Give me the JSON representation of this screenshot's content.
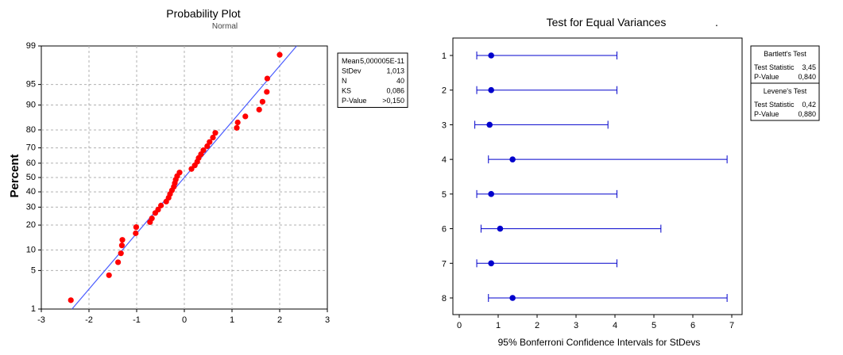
{
  "chart_data": [
    {
      "type": "scatter",
      "title": "Probability Plot",
      "subtitle": "Normal",
      "xlabel": "",
      "ylabel": "Percent",
      "xlim": [
        -3,
        3
      ],
      "xticks": [
        "-3",
        "-2",
        "-1",
        "0",
        "1",
        "2",
        "3"
      ],
      "yticks": [
        "1",
        "5",
        "10",
        "20",
        "30",
        "40",
        "50",
        "60",
        "70",
        "80",
        "90",
        "95",
        "99"
      ],
      "ytick_values": [
        1,
        5,
        10,
        20,
        30,
        40,
        50,
        60,
        70,
        80,
        90,
        95,
        99
      ],
      "grid": true,
      "point_color": "#ff0000",
      "line_color": "#4a5cff",
      "fit_line": {
        "mean": 0,
        "stdev": 1.013
      },
      "points": [
        {
          "x": -2.38,
          "y": 1.5
        },
        {
          "x": -1.58,
          "y": 4.2
        },
        {
          "x": -1.39,
          "y": 6.7
        },
        {
          "x": -1.33,
          "y": 9.0
        },
        {
          "x": -1.31,
          "y": 11.5
        },
        {
          "x": -1.3,
          "y": 13.5
        },
        {
          "x": -1.02,
          "y": 16.2
        },
        {
          "x": -1.01,
          "y": 19.0
        },
        {
          "x": -0.72,
          "y": 21.5
        },
        {
          "x": -0.68,
          "y": 23.5
        },
        {
          "x": -0.61,
          "y": 26.5
        },
        {
          "x": -0.55,
          "y": 28.5
        },
        {
          "x": -0.49,
          "y": 31.0
        },
        {
          "x": -0.38,
          "y": 33.5
        },
        {
          "x": -0.33,
          "y": 36.0
        },
        {
          "x": -0.3,
          "y": 38.5
        },
        {
          "x": -0.26,
          "y": 41.0
        },
        {
          "x": -0.22,
          "y": 43.5
        },
        {
          "x": -0.2,
          "y": 46.0
        },
        {
          "x": -0.18,
          "y": 48.5
        },
        {
          "x": -0.15,
          "y": 51.0
        },
        {
          "x": -0.1,
          "y": 53.5
        },
        {
          "x": 0.15,
          "y": 56.0
        },
        {
          "x": 0.22,
          "y": 58.5
        },
        {
          "x": 0.27,
          "y": 61.0
        },
        {
          "x": 0.3,
          "y": 63.5
        },
        {
          "x": 0.35,
          "y": 66.0
        },
        {
          "x": 0.4,
          "y": 68.5
        },
        {
          "x": 0.48,
          "y": 71.0
        },
        {
          "x": 0.53,
          "y": 73.5
        },
        {
          "x": 0.6,
          "y": 76.0
        },
        {
          "x": 0.65,
          "y": 78.5
        },
        {
          "x": 1.1,
          "y": 81.0
        },
        {
          "x": 1.12,
          "y": 83.5
        },
        {
          "x": 1.28,
          "y": 86.0
        },
        {
          "x": 1.57,
          "y": 88.5
        },
        {
          "x": 1.64,
          "y": 91.0
        },
        {
          "x": 1.73,
          "y": 93.5
        },
        {
          "x": 1.74,
          "y": 96.0
        },
        {
          "x": 2.0,
          "y": 98.5
        }
      ],
      "stats": [
        {
          "label": "Mean",
          "value": "5,000005E-11"
        },
        {
          "label": "StDev",
          "value": "1,013"
        },
        {
          "label": "N",
          "value": "40"
        },
        {
          "label": "KS",
          "value": "0,086"
        },
        {
          "label": "P-Value",
          "value": ">0,150"
        }
      ]
    },
    {
      "type": "scatter",
      "title": "Test for Equal Variances",
      "title_suffix": ".",
      "xlabel": "95% Bonferroni Confidence Intervals for StDevs",
      "ylabel": "",
      "xlim": [
        0,
        7
      ],
      "xticks": [
        "0",
        "1",
        "2",
        "3",
        "4",
        "5",
        "6",
        "7"
      ],
      "categories": [
        "1",
        "2",
        "3",
        "4",
        "5",
        "6",
        "7",
        "8"
      ],
      "color": "#0000cc",
      "intervals": [
        {
          "low": 0.45,
          "est": 0.82,
          "high": 4.05
        },
        {
          "low": 0.45,
          "est": 0.82,
          "high": 4.05
        },
        {
          "low": 0.4,
          "est": 0.78,
          "high": 3.82
        },
        {
          "low": 0.75,
          "est": 1.37,
          "high": 6.88
        },
        {
          "low": 0.45,
          "est": 0.82,
          "high": 4.05
        },
        {
          "low": 0.56,
          "est": 1.05,
          "high": 5.18
        },
        {
          "low": 0.45,
          "est": 0.82,
          "high": 4.05
        },
        {
          "low": 0.75,
          "est": 1.37,
          "high": 6.88
        }
      ],
      "tests": [
        {
          "name": "Bartlett's Test",
          "rows": [
            {
              "label": "Test Statistic",
              "value": "3,45"
            },
            {
              "label": "P-Value",
              "value": "0,840"
            }
          ]
        },
        {
          "name": "Levene's Test",
          "rows": [
            {
              "label": "Test Statistic",
              "value": "0,42"
            },
            {
              "label": "P-Value",
              "value": "0,880"
            }
          ]
        }
      ]
    }
  ]
}
